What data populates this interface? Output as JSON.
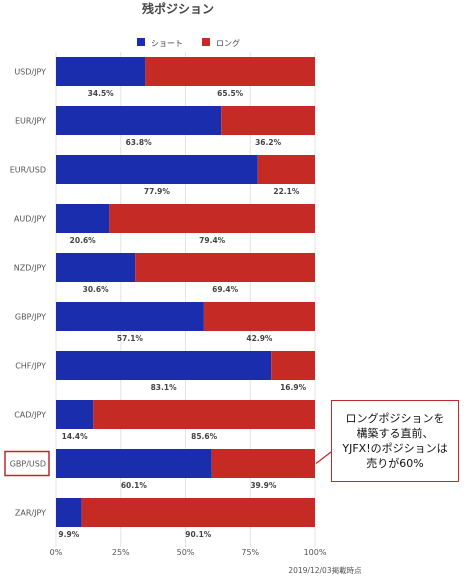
{
  "chart_data": {
    "type": "bar",
    "stacked": true,
    "orientation": "horizontal",
    "title": "残ポジション",
    "categories": [
      "USD/JPY",
      "EUR/JPY",
      "EUR/USD",
      "AUD/JPY",
      "NZD/JPY",
      "GBP/JPY",
      "CHF/JPY",
      "CAD/JPY",
      "GBP/USD",
      "ZAR/JPY"
    ],
    "series": [
      {
        "name": "ショート",
        "color": "#1a2dad",
        "values": [
          34.5,
          63.8,
          77.9,
          20.6,
          30.6,
          57.1,
          83.1,
          14.4,
          60.1,
          9.9
        ]
      },
      {
        "name": "ロング",
        "color": "#c62a25",
        "values": [
          65.5,
          36.2,
          22.1,
          79.4,
          69.4,
          42.9,
          16.9,
          85.6,
          39.9,
          90.1
        ]
      }
    ],
    "value_suffix": "%",
    "xlim": [
      0,
      100
    ],
    "xticks": [
      "0%",
      "25%",
      "50%",
      "75%",
      "100%"
    ],
    "grid": true,
    "legend_position": "top",
    "highlighted_category": "GBP/USD",
    "footnote": "2019/12/03掲載時点"
  },
  "annotation": {
    "lines": [
      "ロングポジションを",
      "構築する直前、",
      "YJFX!のポジションは",
      "売りが60%"
    ],
    "border_color": "#c0282b"
  }
}
